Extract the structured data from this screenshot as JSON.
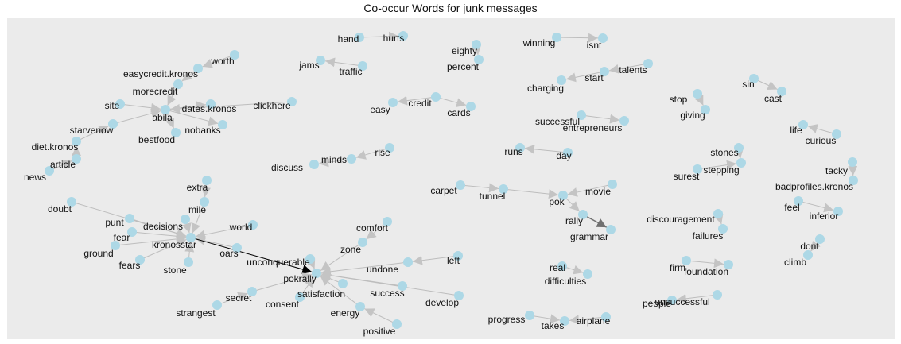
{
  "title": "Co-occur Words for junk messages",
  "colors": {
    "background": "#ebebeb",
    "node": "#add8e6",
    "edge": "#bdbdbd",
    "edge_dark": "#000000",
    "edge_mid": "#707070"
  },
  "chart_data": {
    "type": "network",
    "nodes": [
      "hand",
      "hurts",
      "eighty",
      "percent",
      "winning",
      "isnt",
      "worth",
      "easycredit.kronos",
      "jams",
      "traffic",
      "talents",
      "start",
      "charging",
      "morecredit",
      "site",
      "dates.kronos",
      "clickhere",
      "credit",
      "easy",
      "cards",
      "sin",
      "cast",
      "stop",
      "giving",
      "abila",
      "nobanks",
      "successful",
      "entrepreneurs",
      "starvenow",
      "bestfood",
      "life",
      "curious",
      "diet.kronos",
      "runs",
      "day",
      "rise",
      "minds",
      "discuss",
      "stones",
      "stepping",
      "surest",
      "article",
      "news",
      "tacky",
      "badprofiles.kronos",
      "extra",
      "carpet",
      "tunnel",
      "pok",
      "movie",
      "mile",
      "doubt",
      "rally",
      "feel",
      "inferior",
      "discouragement",
      "failures",
      "world",
      "decisions",
      "punt",
      "fear",
      "kronosstar",
      "grammar",
      "comfort",
      "ground",
      "oars",
      "fears",
      "dont",
      "climb",
      "stone",
      "zone",
      "unconquerable",
      "left",
      "undone",
      "firm",
      "foundation",
      "real",
      "difficulties",
      "pokrally",
      "secret",
      "success",
      "satisfaction",
      "consent",
      "develop",
      "strangest",
      "energy",
      "unsuccessful",
      "people",
      "progress",
      "airplane",
      "takes",
      "positive"
    ],
    "edges": [
      {
        "from": "hand",
        "to": "hurts"
      },
      {
        "from": "eighty",
        "to": "percent"
      },
      {
        "from": "winning",
        "to": "isnt"
      },
      {
        "from": "worth",
        "to": "easycredit.kronos"
      },
      {
        "from": "traffic",
        "to": "jams"
      },
      {
        "from": "talents",
        "to": "start"
      },
      {
        "from": "start",
        "to": "charging"
      },
      {
        "from": "easycredit.kronos",
        "to": "morecredit"
      },
      {
        "from": "morecredit",
        "to": "abila"
      },
      {
        "from": "site",
        "to": "abila"
      },
      {
        "from": "abila",
        "to": "dates.kronos"
      },
      {
        "from": "clickhere",
        "to": "abila"
      },
      {
        "from": "abila",
        "to": "nobanks"
      },
      {
        "from": "abila",
        "to": "bestfood"
      },
      {
        "from": "starvenow",
        "to": "abila"
      },
      {
        "from": "diet.kronos",
        "to": "starvenow"
      },
      {
        "from": "article",
        "to": "diet.kronos"
      },
      {
        "from": "news",
        "to": "article"
      },
      {
        "from": "credit",
        "to": "easy"
      },
      {
        "from": "credit",
        "to": "cards"
      },
      {
        "from": "sin",
        "to": "cast"
      },
      {
        "from": "stop",
        "to": "giving"
      },
      {
        "from": "successful",
        "to": "entrepreneurs"
      },
      {
        "from": "curious",
        "to": "life"
      },
      {
        "from": "day",
        "to": "runs"
      },
      {
        "from": "rise",
        "to": "minds"
      },
      {
        "from": "minds",
        "to": "discuss"
      },
      {
        "from": "stones",
        "to": "stepping"
      },
      {
        "from": "surest",
        "to": "stepping"
      },
      {
        "from": "tacky",
        "to": "badprofiles.kronos"
      },
      {
        "from": "carpet",
        "to": "tunnel"
      },
      {
        "from": "tunnel",
        "to": "pok"
      },
      {
        "from": "movie",
        "to": "pok"
      },
      {
        "from": "pok",
        "to": "rally"
      },
      {
        "from": "rally",
        "to": "grammar"
      },
      {
        "from": "feel",
        "to": "inferior"
      },
      {
        "from": "discouragement",
        "to": "failures"
      },
      {
        "from": "extra",
        "to": "mile"
      },
      {
        "from": "mile",
        "to": "kronosstar"
      },
      {
        "from": "world",
        "to": "kronosstar"
      },
      {
        "from": "doubt",
        "to": "kronosstar"
      },
      {
        "from": "punt",
        "to": "kronosstar"
      },
      {
        "from": "decisions",
        "to": "kronosstar"
      },
      {
        "from": "fear",
        "to": "kronosstar"
      },
      {
        "from": "ground",
        "to": "kronosstar"
      },
      {
        "from": "fears",
        "to": "kronosstar"
      },
      {
        "from": "stone",
        "to": "kronosstar"
      },
      {
        "from": "oars",
        "to": "kronosstar"
      },
      {
        "from": "kronosstar",
        "to": "pokrally"
      },
      {
        "from": "comfort",
        "to": "zone"
      },
      {
        "from": "zone",
        "to": "pokrally"
      },
      {
        "from": "left",
        "to": "undone"
      },
      {
        "from": "undone",
        "to": "pokrally"
      },
      {
        "from": "unconquerable",
        "to": "pokrally"
      },
      {
        "from": "success",
        "to": "pokrally"
      },
      {
        "from": "develop",
        "to": "pokrally"
      },
      {
        "from": "satisfaction",
        "to": "pokrally"
      },
      {
        "from": "consent",
        "to": "pokrally"
      },
      {
        "from": "secret",
        "to": "pokrally"
      },
      {
        "from": "strangest",
        "to": "secret"
      },
      {
        "from": "energy",
        "to": "pokrally"
      },
      {
        "from": "positive",
        "to": "energy"
      },
      {
        "from": "dont",
        "to": "climb"
      },
      {
        "from": "firm",
        "to": "foundation"
      },
      {
        "from": "real",
        "to": "difficulties"
      },
      {
        "from": "unsuccessful",
        "to": "people"
      },
      {
        "from": "progress",
        "to": "takes"
      },
      {
        "from": "airplane",
        "to": "takes"
      }
    ]
  }
}
